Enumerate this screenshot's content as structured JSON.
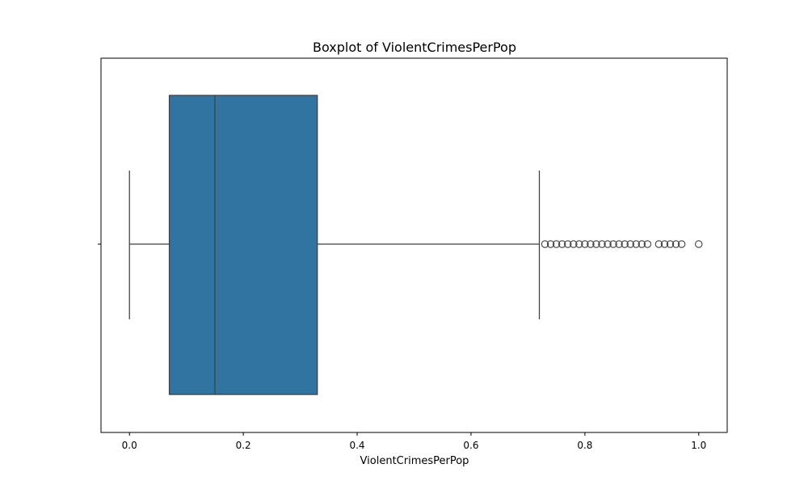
{
  "chart_data": {
    "type": "box",
    "orientation": "horizontal",
    "title": "Boxplot of ViolentCrimesPerPop",
    "xlabel": "ViolentCrimesPerPop",
    "ylabel": "",
    "xlim": [
      -0.05,
      1.05
    ],
    "xticks": [
      0.0,
      0.2,
      0.4,
      0.6,
      0.8,
      1.0
    ],
    "xtick_labels": [
      "0.0",
      "0.2",
      "0.4",
      "0.6",
      "0.8",
      "1.0"
    ],
    "grid": false,
    "box_color": "#3274a1",
    "line_color": "#3f3f3f",
    "stats": {
      "whisker_low": 0.0,
      "q1": 0.07,
      "median": 0.15,
      "q3": 0.33,
      "whisker_high": 0.72
    },
    "outliers": [
      0.73,
      0.74,
      0.75,
      0.76,
      0.77,
      0.78,
      0.79,
      0.8,
      0.81,
      0.82,
      0.83,
      0.84,
      0.85,
      0.86,
      0.87,
      0.88,
      0.89,
      0.9,
      0.91,
      0.93,
      0.94,
      0.95,
      0.96,
      0.97,
      1.0
    ]
  }
}
